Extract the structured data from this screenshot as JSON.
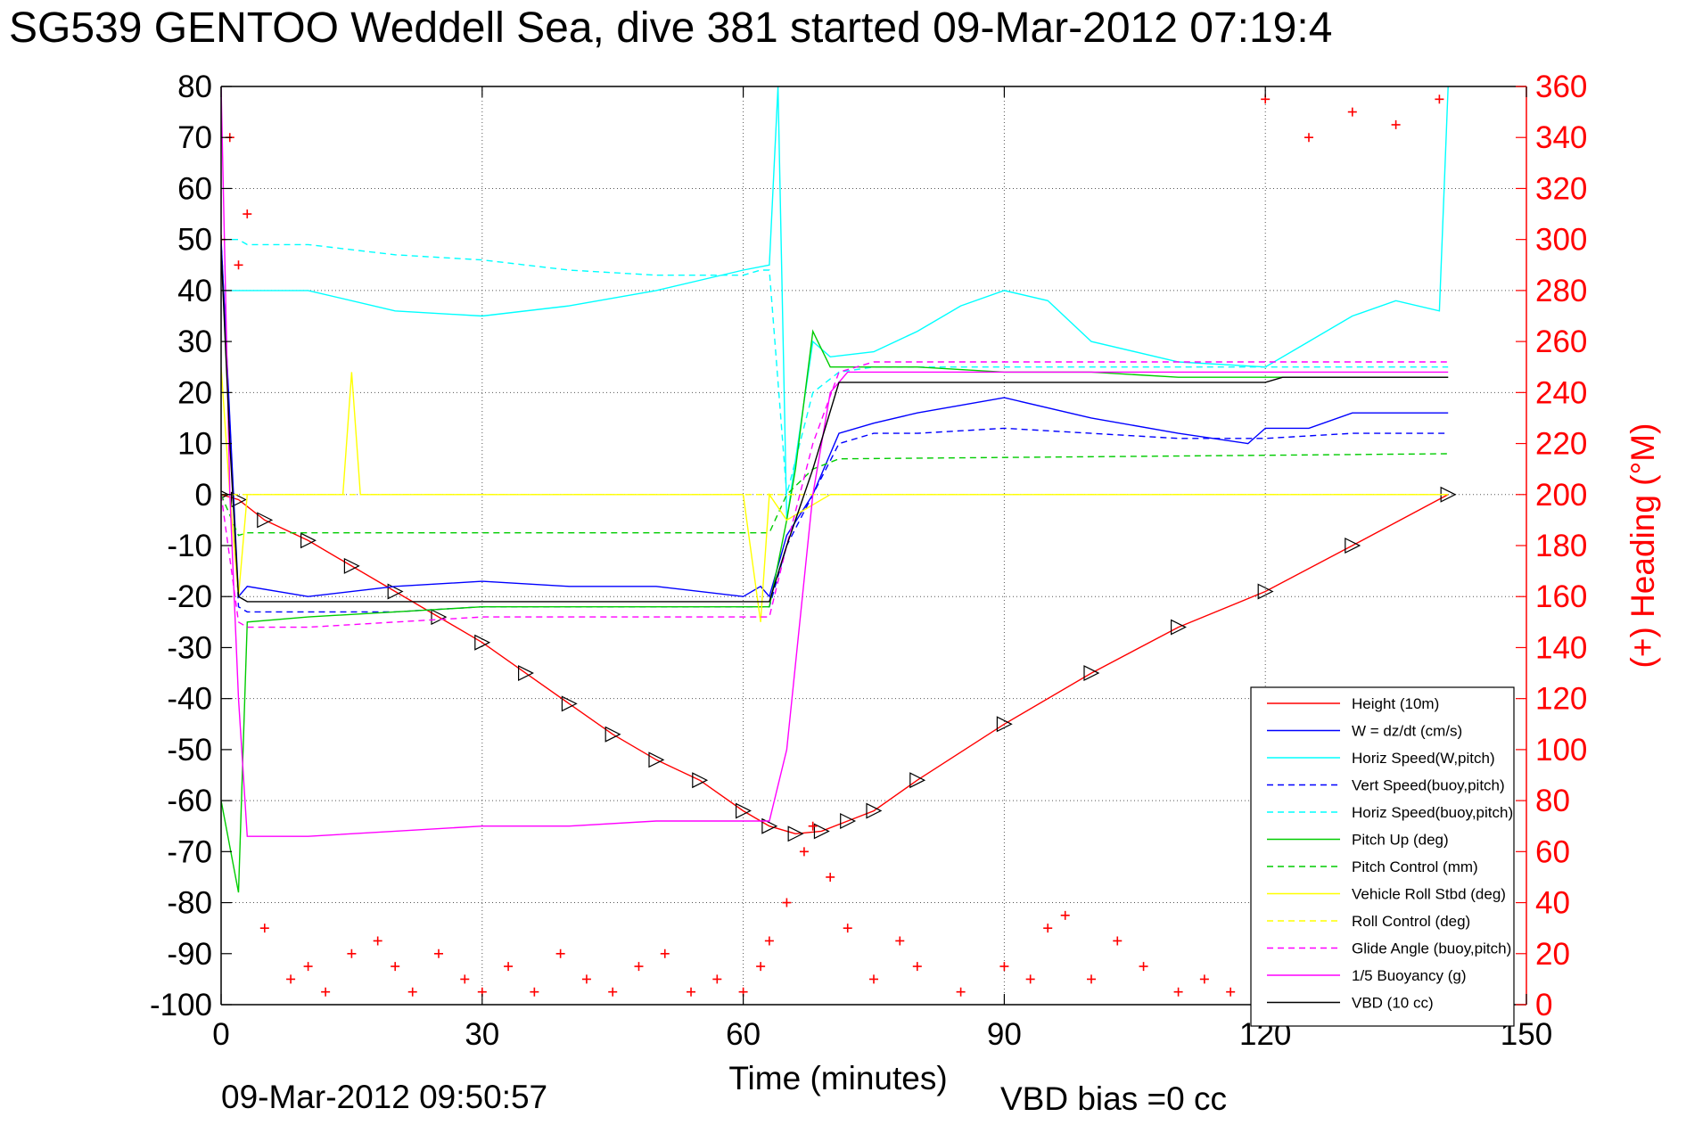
{
  "chart_data": {
    "type": "line",
    "title": "SG539 GENTOO Weddell Sea, dive 381 started 09-Mar-2012 07:19:4",
    "xlabel": "Time (minutes)",
    "ylabel_right": "(+) Heading (°M)",
    "xlim": [
      0,
      150
    ],
    "ylim_left": [
      -100,
      80
    ],
    "ylim_right": [
      0,
      360
    ],
    "x_ticks": [
      0,
      30,
      60,
      90,
      120,
      150
    ],
    "y_left_ticks": [
      80,
      70,
      60,
      50,
      40,
      30,
      20,
      10,
      0,
      -10,
      -20,
      -30,
      -40,
      -50,
      -60,
      -70,
      -80,
      -90,
      -100
    ],
    "y_right_ticks": [
      360,
      340,
      320,
      300,
      280,
      260,
      240,
      220,
      200,
      180,
      160,
      140,
      120,
      100,
      80,
      60,
      40,
      20,
      0
    ],
    "grid": true,
    "legend_position": "bottom-right",
    "footer_date": "09-Mar-2012 09:50:57",
    "footer_bias": "VBD bias =0 cc",
    "series": [
      {
        "name": "Height (10m)",
        "color": "#ff0000",
        "style": "solid",
        "marker": "triangle",
        "x": [
          0,
          2,
          5,
          10,
          15,
          20,
          25,
          30,
          35,
          40,
          45,
          50,
          55,
          60,
          63,
          66,
          69,
          72,
          75,
          80,
          90,
          100,
          110,
          120,
          130,
          141
        ],
        "y": [
          0,
          -1,
          -5,
          -9,
          -14,
          -19,
          -24,
          -29,
          -35,
          -41,
          -47,
          -52,
          -56,
          -62,
          -65,
          -66.5,
          -66,
          -64,
          -62,
          -56,
          -45,
          -35,
          -26,
          -19,
          -10,
          0
        ]
      },
      {
        "name": "W = dz/dt (cm/s)",
        "color": "#0000ff",
        "style": "solid",
        "x": [
          0,
          2,
          3,
          10,
          20,
          30,
          40,
          50,
          60,
          62,
          63,
          65,
          68,
          71,
          75,
          80,
          90,
          100,
          110,
          118,
          120,
          125,
          130,
          141
        ],
        "y": [
          50,
          -20,
          -18,
          -20,
          -18,
          -17,
          -18,
          -18,
          -20,
          -18,
          -20,
          -8,
          0,
          12,
          14,
          16,
          19,
          15,
          12,
          10,
          13,
          13,
          16,
          16
        ]
      },
      {
        "name": "Horiz Speed(W,pitch)",
        "color": "#00ffff",
        "style": "solid",
        "x": [
          0,
          2,
          3,
          10,
          20,
          30,
          40,
          50,
          60,
          63,
          64,
          65,
          68,
          70,
          75,
          80,
          85,
          90,
          95,
          100,
          110,
          120,
          125,
          130,
          135,
          140,
          141
        ],
        "y": [
          40,
          40,
          40,
          40,
          36,
          35,
          37,
          40,
          44,
          45,
          80,
          -5,
          30,
          27,
          28,
          32,
          37,
          40,
          38,
          30,
          26,
          25,
          30,
          35,
          38,
          36,
          80
        ]
      },
      {
        "name": "Vert Speed(buoy,pitch)",
        "color": "#0000ff",
        "style": "dashed",
        "x": [
          0,
          2,
          3,
          10,
          20,
          30,
          40,
          50,
          60,
          62,
          63,
          65,
          68,
          71,
          75,
          80,
          90,
          100,
          110,
          120,
          130,
          141
        ],
        "y": [
          50,
          -22,
          -23,
          -23,
          -23,
          -22,
          -22,
          -22,
          -22,
          -22,
          -22,
          -10,
          0,
          10,
          12,
          12,
          13,
          12,
          11,
          11,
          12,
          12
        ]
      },
      {
        "name": "Horiz Speed(buoy,pitch)",
        "color": "#00ffff",
        "style": "dashed",
        "x": [
          0,
          2,
          3,
          10,
          20,
          30,
          40,
          50,
          60,
          62,
          63,
          65,
          68,
          71,
          75,
          80,
          90,
          100,
          110,
          120,
          130,
          141
        ],
        "y": [
          50,
          50,
          49,
          49,
          47,
          46,
          44,
          43,
          43,
          44,
          44,
          0,
          20,
          24,
          25,
          25,
          25,
          25,
          25,
          25,
          25,
          25
        ]
      },
      {
        "name": "Pitch Up (deg)",
        "color": "#00cc00",
        "style": "solid",
        "x": [
          0,
          2,
          3,
          10,
          20,
          30,
          40,
          50,
          60,
          62,
          63,
          65,
          66,
          68,
          70,
          75,
          80,
          90,
          100,
          110,
          120,
          130,
          141
        ],
        "y": [
          -60,
          -78,
          -25,
          -24,
          -23,
          -22,
          -22,
          -22,
          -22,
          -22,
          -22,
          -5,
          5,
          32,
          25,
          25,
          25,
          24,
          24,
          23,
          23,
          23,
          23
        ]
      },
      {
        "name": "Pitch Control (mm)",
        "color": "#00cc00",
        "style": "dashed",
        "x": [
          0,
          2,
          3,
          60,
          63,
          65,
          68,
          71,
          141
        ],
        "y": [
          0,
          -8,
          -7.5,
          -7.5,
          -7.5,
          0,
          5,
          7,
          8
        ]
      },
      {
        "name": "Vehicle Roll Stbd (deg)",
        "color": "#ffff00",
        "style": "solid",
        "x": [
          0,
          1,
          2,
          3,
          10,
          14,
          15,
          16,
          20,
          30,
          40,
          50,
          60,
          62,
          63,
          65,
          70,
          80,
          90,
          100,
          110,
          120,
          125,
          130,
          135,
          141
        ],
        "y": [
          25,
          0,
          -20,
          0,
          0,
          0,
          24,
          0,
          0,
          0,
          0,
          0,
          0,
          -25,
          0,
          -5,
          0,
          0,
          0,
          0,
          0,
          0,
          0,
          0,
          0,
          0
        ]
      },
      {
        "name": "Roll Control (deg)",
        "color": "#ffff00",
        "style": "dashed",
        "x": [
          0,
          2,
          3,
          60,
          63,
          65,
          141
        ],
        "y": [
          0,
          0,
          0,
          0,
          0,
          0,
          0
        ]
      },
      {
        "name": "Glide Angle (buoy,pitch)",
        "color": "#ff00ff",
        "style": "dashed",
        "x": [
          0,
          2,
          3,
          10,
          20,
          30,
          40,
          50,
          60,
          62,
          63,
          65,
          68,
          71,
          75,
          80,
          90,
          100,
          110,
          120,
          130,
          141
        ],
        "y": [
          0,
          -25,
          -26,
          -26,
          -25,
          -24,
          -24,
          -24,
          -24,
          -24,
          -24,
          -10,
          10,
          24,
          26,
          26,
          26,
          26,
          26,
          26,
          26,
          26
        ]
      },
      {
        "name": "1/5 Buoyancy (g)",
        "color": "#ff00ff",
        "style": "solid",
        "x": [
          0,
          1,
          2,
          3,
          10,
          20,
          30,
          40,
          50,
          60,
          63,
          65,
          68,
          70,
          72,
          80,
          90,
          100,
          110,
          120,
          130,
          141
        ],
        "y": [
          80,
          0,
          -40,
          -67,
          -67,
          -66,
          -65,
          -65,
          -64,
          -64,
          -64,
          -50,
          0,
          20,
          24,
          24,
          24,
          24,
          24,
          24,
          24,
          24
        ]
      },
      {
        "name": "VBD (10 cc)",
        "color": "#000000",
        "style": "solid",
        "x": [
          0,
          1,
          2,
          3,
          10,
          20,
          30,
          40,
          50,
          60,
          63,
          65,
          68,
          71,
          75,
          80,
          90,
          100,
          110,
          120,
          122,
          141
        ],
        "y": [
          48,
          10,
          -20,
          -21,
          -21,
          -21,
          -21,
          -21,
          -21,
          -21,
          -21,
          -10,
          5,
          22,
          22,
          22,
          22,
          22,
          22,
          22,
          23,
          23
        ]
      },
      {
        "name": "Heading (°M)",
        "color": "#ff0000",
        "style": "markers-plus",
        "axis": "right",
        "x": [
          0,
          1,
          2,
          3,
          5,
          8,
          10,
          12,
          15,
          18,
          20,
          22,
          25,
          28,
          30,
          33,
          36,
          39,
          42,
          45,
          48,
          51,
          54,
          57,
          60,
          62,
          63,
          65,
          67,
          68,
          70,
          72,
          75,
          78,
          80,
          85,
          90,
          93,
          95,
          97,
          100,
          103,
          106,
          110,
          113,
          116,
          120,
          125,
          130,
          135,
          140
        ],
        "y": [
          300,
          340,
          290,
          310,
          30,
          10,
          15,
          5,
          20,
          25,
          15,
          5,
          20,
          10,
          5,
          15,
          5,
          20,
          10,
          5,
          15,
          20,
          5,
          10,
          5,
          15,
          25,
          40,
          60,
          70,
          50,
          30,
          10,
          25,
          15,
          5,
          15,
          10,
          30,
          35,
          10,
          25,
          15,
          5,
          10,
          5,
          355,
          340,
          350,
          345,
          355
        ]
      }
    ]
  }
}
